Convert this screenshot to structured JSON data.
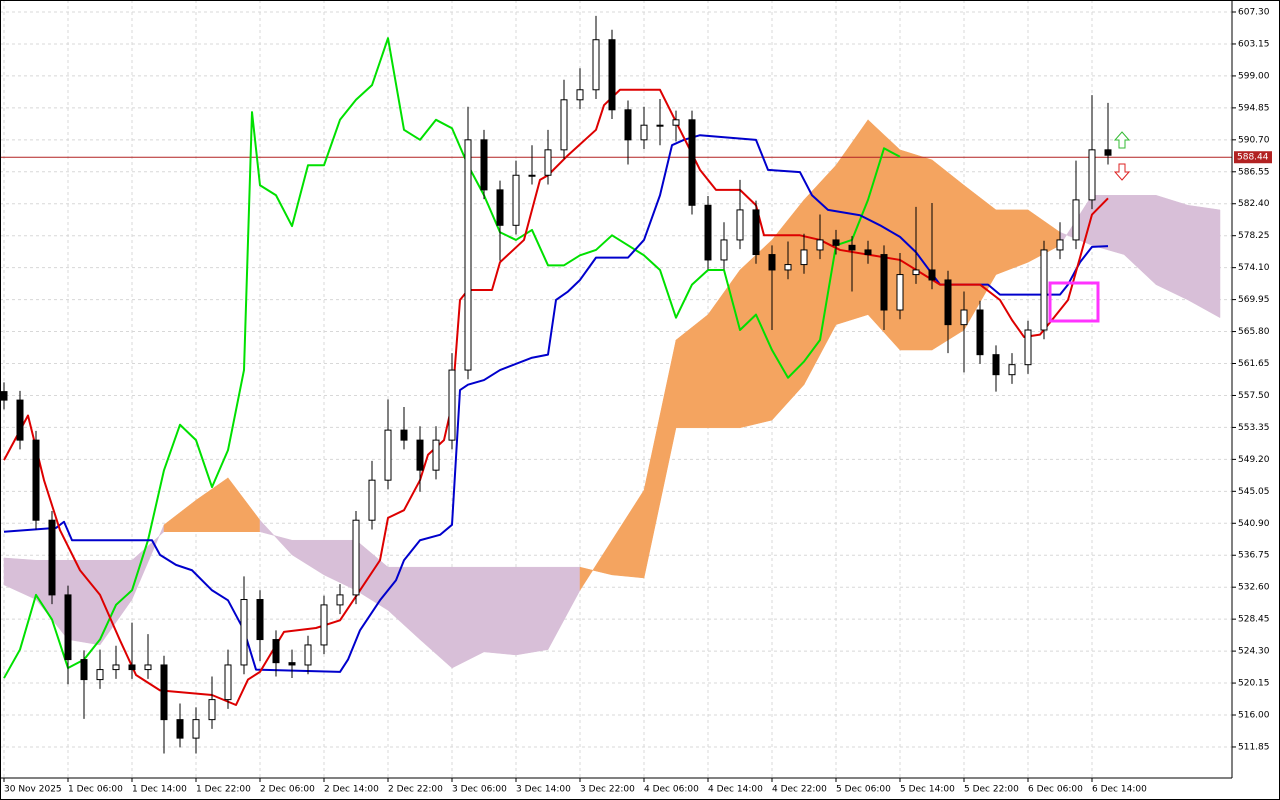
{
  "chart_data": {
    "type": "candlestick",
    "xlim": [
      -0.5,
      153.5
    ],
    "ylim": [
      507.82,
      608.86
    ],
    "grid": true,
    "xticks": [
      {
        "value": 0,
        "label": "30 Nov 2025"
      },
      {
        "value": 8,
        "label": "1 Dec 06:00"
      },
      {
        "value": 16,
        "label": "1 Dec 14:00"
      },
      {
        "value": 24,
        "label": "1 Dec 22:00"
      },
      {
        "value": 32,
        "label": "2 Dec 06:00"
      },
      {
        "value": 40,
        "label": "2 Dec 14:00"
      },
      {
        "value": 48,
        "label": "2 Dec 22:00"
      },
      {
        "value": 56,
        "label": "3 Dec 06:00"
      },
      {
        "value": 64,
        "label": "3 Dec 14:00"
      },
      {
        "value": 72,
        "label": "3 Dec 22:00"
      },
      {
        "value": 80,
        "label": "4 Dec 06:00"
      },
      {
        "value": 88,
        "label": "4 Dec 14:00"
      },
      {
        "value": 96,
        "label": "4 Dec 22:00"
      },
      {
        "value": 104,
        "label": "5 Dec 06:00"
      },
      {
        "value": 112,
        "label": "5 Dec 14:00"
      },
      {
        "value": 120,
        "label": "5 Dec 22:00"
      },
      {
        "value": 128,
        "label": "6 Dec 06:00"
      },
      {
        "value": 136,
        "label": "6 Dec 14:00"
      }
    ],
    "yticks": [
      {
        "value": 607.3,
        "label": "607.30"
      },
      603.15,
      {
        "value": 599,
        "label": "599.00"
      },
      594.85,
      {
        "value": 590.7,
        "label": "590.70"
      },
      586.55,
      {
        "value": 582.4,
        "label": "582.40"
      },
      578.25,
      {
        "value": 574.1,
        "label": "574.10"
      },
      569.95,
      {
        "value": 565.8,
        "label": "565.80"
      },
      561.65,
      {
        "value": 557.5,
        "label": "557.50"
      },
      553.35,
      {
        "value": 549.2,
        "label": "549.20"
      },
      545.05,
      {
        "value": 540.9,
        "label": "540.90"
      },
      536.75,
      {
        "value": 532.6,
        "label": "532.60"
      },
      528.45,
      {
        "value": 524.3,
        "label": "524.30"
      },
      520.15,
      {
        "value": 516,
        "label": "516.00"
      },
      511.85
    ],
    "current_price": 588.44,
    "current_price_color": "#b22222",
    "candles": {
      "up_color": "#ffffff",
      "down_color": "#000000",
      "x": [
        0,
        2,
        4,
        6,
        8,
        10,
        12,
        14,
        16,
        18,
        20,
        22,
        24,
        26,
        28,
        30,
        32,
        34,
        36,
        38,
        40,
        42,
        44,
        46,
        48,
        50,
        52,
        54,
        56,
        58,
        60,
        62,
        64,
        66,
        68,
        70,
        72,
        74,
        76,
        78,
        80,
        82,
        84,
        86,
        88,
        90,
        92,
        94,
        96,
        98,
        100,
        102,
        104,
        106,
        108,
        110,
        112,
        114,
        116,
        118,
        120,
        122,
        124,
        126,
        128,
        130,
        132,
        134,
        136,
        138
      ],
      "open": [
        558.0,
        556.9,
        551.7,
        541.3,
        531.6,
        523.2,
        520.6,
        521.9,
        522.5,
        521.9,
        522.5,
        515.4,
        513.0,
        515.4,
        518.0,
        522.5,
        531.0,
        525.8,
        522.8,
        522.5,
        525.1,
        530.3,
        531.6,
        541.3,
        546.5,
        553.0,
        551.7,
        547.8,
        551.7,
        560.8,
        590.7,
        584.2,
        579.6,
        586.1,
        586.1,
        589.4,
        595.9,
        597.2,
        603.7,
        594.6,
        590.7,
        592.6,
        592.6,
        593.3,
        582.2,
        575.1,
        577.7,
        581.6,
        575.8,
        573.8,
        574.5,
        576.4,
        577.7,
        577.0,
        576.4,
        575.8,
        568.6,
        573.2,
        573.8,
        572.5,
        566.7,
        568.6,
        562.8,
        560.2,
        561.5,
        566.0,
        576.4,
        577.7,
        582.9,
        589.4
      ],
      "high": [
        559.2,
        558.1,
        552.9,
        542.5,
        532.8,
        524.4,
        524.5,
        525.0,
        528.0,
        526.5,
        523.7,
        517.5,
        517.0,
        521.0,
        524.5,
        534.0,
        532.2,
        527.0,
        524.5,
        526.3,
        531.5,
        533.0,
        542.5,
        549.0,
        557.0,
        556.0,
        553.5,
        553.5,
        563.0,
        595.0,
        592.0,
        585.4,
        588.0,
        590.0,
        592.0,
        598.5,
        600.0,
        606.8,
        605.0,
        595.8,
        595.0,
        596.0,
        594.5,
        594.5,
        583.4,
        580.0,
        585.5,
        582.8,
        577.0,
        577.5,
        578.5,
        581.0,
        579.0,
        578.2,
        577.6,
        577.0,
        576.0,
        582.0,
        582.5,
        573.7,
        571.0,
        569.8,
        564.0,
        563.0,
        567.2,
        577.6,
        580.0,
        588.0,
        596.5,
        595.5
      ],
      "low": [
        555.7,
        550.5,
        540.1,
        530.4,
        520.0,
        515.5,
        519.4,
        520.7,
        520.7,
        520.7,
        511.0,
        511.8,
        511.0,
        514.2,
        516.8,
        521.3,
        523.0,
        521.0,
        520.8,
        521.3,
        523.9,
        529.1,
        530.4,
        540.1,
        545.3,
        550.5,
        545.0,
        546.6,
        550.5,
        559.6,
        583.0,
        575.0,
        578.4,
        584.9,
        584.9,
        588.2,
        594.7,
        596.0,
        593.4,
        587.5,
        589.5,
        590.0,
        590.5,
        581.0,
        573.9,
        573.9,
        576.5,
        574.6,
        566.0,
        572.6,
        573.3,
        575.2,
        575.8,
        571.0,
        574.6,
        566.0,
        567.4,
        572.0,
        571.3,
        563.0,
        560.5,
        561.6,
        558.0,
        559.0,
        560.3,
        564.8,
        575.2,
        576.5,
        581.7,
        587.5
      ],
      "close": [
        556.9,
        551.7,
        541.3,
        531.6,
        523.2,
        520.6,
        521.9,
        522.5,
        521.9,
        522.5,
        515.4,
        513.0,
        515.4,
        518.0,
        522.5,
        531.0,
        525.8,
        522.8,
        522.5,
        525.1,
        530.3,
        531.6,
        541.3,
        546.5,
        553.0,
        551.7,
        547.8,
        551.7,
        560.8,
        590.7,
        584.2,
        579.6,
        586.1,
        586.1,
        589.4,
        595.9,
        597.2,
        603.7,
        594.6,
        590.7,
        592.6,
        592.6,
        593.3,
        582.2,
        575.1,
        577.7,
        581.6,
        575.8,
        573.8,
        574.5,
        576.4,
        577.7,
        577.0,
        576.4,
        575.8,
        568.6,
        573.2,
        573.8,
        572.5,
        566.7,
        568.6,
        562.8,
        560.2,
        561.5,
        566.0,
        576.4,
        577.7,
        582.9,
        589.4,
        588.7
      ]
    },
    "cloud": {
      "up_color": "#f4a460",
      "down_color": "#d8bfd8",
      "x": [
        0,
        4,
        8,
        12,
        16,
        20,
        24,
        28,
        32,
        36,
        40,
        44,
        48,
        52,
        56,
        60,
        64,
        68,
        72,
        76,
        80,
        84,
        88,
        92,
        96,
        100,
        104,
        108,
        112,
        116,
        120,
        124,
        128,
        132,
        136,
        140,
        144,
        148,
        152
      ],
      "span_a": [
        532.9,
        531.0,
        525.8,
        525.1,
        531.0,
        540.7,
        543.9,
        546.8,
        541.3,
        536.8,
        534.2,
        532.2,
        529.6,
        525.8,
        522.1,
        524.2,
        523.8,
        524.5,
        532.2,
        538.7,
        545.2,
        564.7,
        568.0,
        573.8,
        577.7,
        582.9,
        587.4,
        593.3,
        589.4,
        588.1,
        584.8,
        581.6,
        581.6,
        578.7,
        577.0,
        575.8,
        571.9,
        569.9,
        567.6
      ],
      "span_b": [
        536.4,
        536.1,
        536.1,
        536.1,
        536.1,
        539.8,
        539.8,
        539.8,
        539.8,
        538.7,
        538.7,
        538.7,
        535.2,
        535.2,
        535.2,
        535.2,
        535.2,
        535.2,
        535.2,
        534.2,
        533.8,
        553.3,
        553.3,
        553.3,
        554.3,
        558.9,
        566.7,
        568.0,
        563.4,
        563.4,
        566.0,
        573.2,
        574.8,
        577.0,
        583.5,
        583.5,
        583.5,
        582.2,
        581.6
      ]
    },
    "lines": [
      {
        "color": "#00e000",
        "x": [
          0,
          2,
          4,
          6,
          8,
          10,
          12,
          14,
          16,
          18,
          20,
          22,
          24,
          26,
          28,
          30,
          31,
          32,
          34,
          36,
          38,
          40,
          42,
          44,
          46,
          48,
          50,
          52,
          54,
          56,
          58,
          60,
          62,
          64,
          66,
          68,
          70,
          72,
          74,
          76,
          78,
          80,
          82,
          84,
          86,
          88,
          90,
          92,
          94,
          96,
          98,
          100,
          102,
          104,
          106,
          108,
          110,
          112
        ],
        "values": [
          520.8,
          524.5,
          531.6,
          528.4,
          522.1,
          523.2,
          525.8,
          530.3,
          532.2,
          538.7,
          547.8,
          553.7,
          551.7,
          545.6,
          550.4,
          560.8,
          594.3,
          584.8,
          583.5,
          579.5,
          587.4,
          587.4,
          593.3,
          595.9,
          597.8,
          603.9,
          592.0,
          590.7,
          593.3,
          592.2,
          587.4,
          583.5,
          578.7,
          577.7,
          579.0,
          574.4,
          574.4,
          575.7,
          576.4,
          578.3,
          577.0,
          575.7,
          573.8,
          567.6,
          571.9,
          573.8,
          573.8,
          566.0,
          568.0,
          563.4,
          559.8,
          561.9,
          564.7,
          577.0,
          577.7,
          582.9,
          589.6,
          588.5
        ]
      },
      {
        "color": "#0000cc",
        "x": [
          0,
          6.5,
          7.5,
          8.5,
          18.5,
          19.5,
          21.5,
          23.5,
          26,
          28,
          30,
          31.5,
          42,
          43,
          44.5,
          47,
          49,
          50,
          52,
          54.5,
          56,
          57,
          58,
          60,
          62,
          66,
          68,
          69,
          70.5,
          72,
          74,
          78,
          80,
          82,
          83.5,
          85,
          87,
          94,
          95.5,
          99.5,
          101,
          103,
          107,
          109.5,
          112,
          114,
          117,
          123,
          124.5,
          132,
          133,
          134.5,
          136,
          138
        ],
        "values": [
          539.8,
          540.3,
          541.1,
          538.7,
          538.7,
          536.8,
          535.5,
          534.8,
          532.2,
          530.9,
          527.0,
          521.9,
          521.6,
          523.2,
          527.0,
          530.9,
          533.5,
          536.1,
          538.7,
          539.4,
          540.7,
          558.2,
          558.9,
          559.5,
          560.8,
          562.4,
          562.8,
          569.9,
          571.0,
          572.5,
          575.4,
          575.4,
          577.7,
          583.5,
          590.0,
          590.7,
          591.3,
          590.7,
          586.8,
          586.5,
          583.5,
          581.6,
          580.9,
          579.6,
          578.1,
          576.1,
          571.9,
          571.9,
          570.6,
          570.6,
          571.9,
          574.8,
          576.8,
          576.9
        ]
      },
      {
        "color": "#dd0000",
        "x": [
          0,
          3,
          5,
          7,
          9.5,
          12,
          14.5,
          16.5,
          19.5,
          26,
          29,
          30.5,
          32,
          35,
          39,
          42,
          44.5,
          47,
          48,
          50,
          52,
          53,
          55,
          56,
          57,
          58,
          61,
          62,
          65,
          67,
          68,
          70.5,
          74,
          75,
          77,
          82,
          84.5,
          87,
          89,
          92,
          94,
          95,
          99.5,
          102,
          104.5,
          112,
          117,
          122,
          124.5,
          126,
          127.5,
          129.5,
          131,
          133,
          134.5,
          136,
          138
        ],
        "values": [
          549.1,
          554.9,
          546.5,
          540.0,
          534.8,
          531.6,
          525.7,
          521.2,
          519.2,
          518.6,
          517.3,
          520.6,
          521.6,
          526.8,
          527.3,
          528.3,
          532.2,
          536.1,
          541.6,
          542.6,
          546.5,
          549.8,
          551.7,
          556.3,
          569.9,
          571.2,
          571.2,
          574.8,
          577.7,
          585.5,
          586.1,
          588.7,
          592.0,
          595.2,
          597.2,
          597.2,
          592.0,
          586.8,
          584.2,
          584.2,
          582.2,
          578.3,
          578.3,
          577.7,
          576.4,
          575.1,
          571.9,
          571.9,
          569.9,
          567.3,
          565.1,
          565.4,
          567.3,
          569.9,
          575.4,
          581.0,
          583.1
        ]
      }
    ]
  }
}
